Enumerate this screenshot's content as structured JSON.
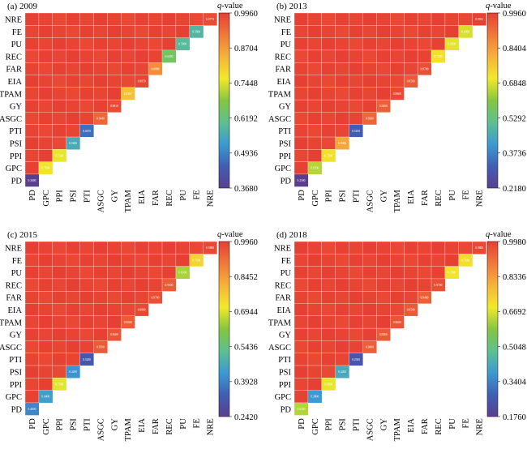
{
  "figure": {
    "colorbar_label": "q-value",
    "colorbar_label_italic": "q",
    "colorbar_label_suffix": "-value"
  },
  "colormap": [
    "#5b3f8f",
    "#3f5fb4",
    "#3c9ad2",
    "#5ec08f",
    "#86c640",
    "#f2e92a",
    "#f6b33a",
    "#f0793a",
    "#e63f33"
  ],
  "chart_data": [
    {
      "type": "heatmap",
      "title": "(a) 2009",
      "x_labels": [
        "PD",
        "GPC",
        "PPI",
        "PSI",
        "PTI",
        "ASGC",
        "GY",
        "TPAM",
        "EIA",
        "FAR",
        "REC",
        "PU",
        "FE",
        "NRE"
      ],
      "y_labels": [
        "NRE",
        "FE",
        "PU",
        "REC",
        "FAR",
        "EIA",
        "TPAM",
        "GY",
        "ASGC",
        "PTI",
        "PSI",
        "PPI",
        "GPC",
        "PD"
      ],
      "colorbar_ticks": [
        "0.9960",
        "0.8704",
        "0.7448",
        "0.6192",
        "0.4936",
        "0.3680"
      ],
      "vmin": 0.368,
      "vmax": 0.996,
      "diagonal": [
        "0.3680",
        "0.7684",
        "0.7540",
        "0.5600",
        "0.4670",
        "0.9440",
        "0.9810",
        "0.8167",
        "0.9870",
        "0.8888",
        "0.6490",
        "0.5900",
        "0.5800",
        "0.9773"
      ]
    },
    {
      "type": "heatmap",
      "title": "(b) 2013",
      "x_labels": [
        "PD",
        "GPC",
        "PPI",
        "PSI",
        "PTI",
        "ASGC",
        "GY",
        "TPAM",
        "EIA",
        "FAR",
        "REC",
        "PU",
        "FE",
        "NRE"
      ],
      "y_labels": [
        "NRE",
        "FE",
        "PU",
        "REC",
        "FAR",
        "EIA",
        "TPAM",
        "GY",
        "ASGC",
        "PTI",
        "PSI",
        "PPI",
        "GPC",
        "PD"
      ],
      "colorbar_ticks": [
        "0.9960",
        "0.8404",
        "0.6848",
        "0.5292",
        "0.3736",
        "0.2180"
      ],
      "vmin": 0.218,
      "vmax": 0.996,
      "diagonal": [
        "0.2180",
        "0.6500",
        "0.7200",
        "0.8200",
        "0.3100",
        "0.9300",
        "0.9400",
        "0.9800",
        "0.9500",
        "0.9700",
        "0.7200",
        "0.6900",
        "0.6800",
        "0.9931"
      ]
    },
    {
      "type": "heatmap",
      "title": "(c) 2015",
      "x_labels": [
        "PD",
        "GPC",
        "PPI",
        "PSI",
        "PTI",
        "ASGC",
        "GY",
        "TPAM",
        "EIA",
        "FAR",
        "REC",
        "PU",
        "FE",
        "NRE"
      ],
      "y_labels": [
        "NRE",
        "FE",
        "PU",
        "REC",
        "FAR",
        "EIA",
        "TPAM",
        "GY",
        "ASGC",
        "PTI",
        "PSI",
        "PPI",
        "GPC",
        "PD"
      ],
      "colorbar_ticks": [
        "0.9960",
        "0.8452",
        "0.6944",
        "0.5436",
        "0.3928",
        "0.2420"
      ],
      "vmin": 0.242,
      "vmax": 0.996,
      "diagonal": [
        "0.4000",
        "0.4400",
        "0.7000",
        "0.4200",
        "0.3200",
        "0.9500",
        "0.9600",
        "0.9500",
        "0.9800",
        "0.9700",
        "0.9500",
        "0.6500",
        "0.7500",
        "0.9800"
      ]
    },
    {
      "type": "heatmap",
      "title": "(d) 2018",
      "x_labels": [
        "PD",
        "GPC",
        "PPI",
        "PSI",
        "PTI",
        "ASGC",
        "GY",
        "TPAM",
        "EIA",
        "FAR",
        "REC",
        "PU",
        "FE",
        "NRE"
      ],
      "y_labels": [
        "NRE",
        "FE",
        "PU",
        "REC",
        "FAR",
        "EIA",
        "TPAM",
        "GY",
        "ASGC",
        "PTI",
        "PSI",
        "PPI",
        "GPC",
        "PD"
      ],
      "colorbar_ticks": [
        "0.9980",
        "0.8336",
        "0.6692",
        "0.5048",
        "0.3404",
        "0.1760"
      ],
      "vmin": 0.176,
      "vmax": 0.998,
      "diagonal": [
        "0.6300",
        "0.3800",
        "0.6800",
        "0.4200",
        "0.2500",
        "0.9400",
        "0.9500",
        "0.9600",
        "0.9500",
        "0.9400",
        "0.9700",
        "0.7000",
        "0.7100",
        "0.9800"
      ]
    }
  ]
}
